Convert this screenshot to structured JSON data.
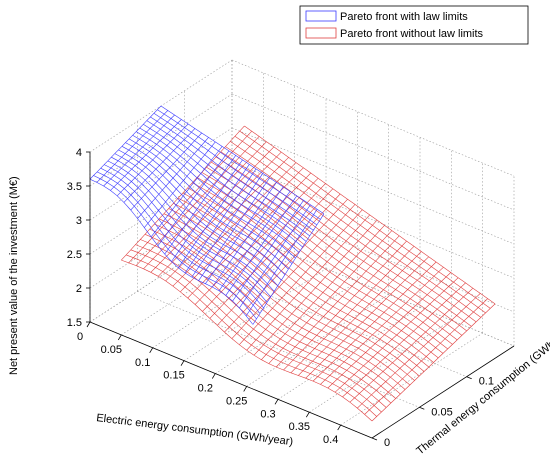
{
  "chart_data": {
    "type": "surface",
    "legend_position": "top-right",
    "grid": true,
    "axes": {
      "x": {
        "label": "Electric energy consumption (GWh/year)",
        "range": [
          0,
          0.45
        ],
        "ticks": [
          "0",
          "0.05",
          "0.1",
          "0.15",
          "0.2",
          "0.25",
          "0.3",
          "0.35",
          "0.4"
        ]
      },
      "y": {
        "label": "Thermal energy consumption  (GWh/year)",
        "range": [
          0,
          0.15
        ],
        "ticks": [
          "0",
          "0.05",
          "0.1"
        ]
      },
      "z": {
        "label": "Net present value of the investment  (M€)",
        "range": [
          1.5,
          4
        ],
        "ticks": [
          "1.5",
          "2",
          "2.5",
          "3",
          "3.5",
          "4"
        ]
      }
    },
    "series": [
      {
        "name": "Pareto front with law limits",
        "color": "#3b3bff",
        "x_range": [
          0.0,
          0.26
        ],
        "y_range": [
          0.0,
          0.075
        ],
        "z_corners": {
          "x0_y0": 3.6,
          "x1_y0": 2.4,
          "x0_y1": 4.0,
          "x1_y1": 3.4
        }
      },
      {
        "name": "Pareto front without law limits",
        "color": "#e04040",
        "x_range": [
          0.05,
          0.45
        ],
        "y_range": [
          0.0,
          0.13
        ],
        "z_corners": {
          "x0_y0": 2.6,
          "x1_y0": 1.7,
          "x0_y1": 3.4,
          "x1_y1": 2.3
        }
      }
    ]
  }
}
